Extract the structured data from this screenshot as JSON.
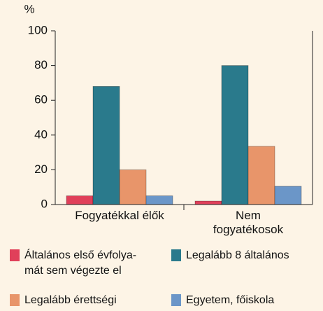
{
  "chart_data": {
    "type": "bar",
    "y_label": "%",
    "categories": [
      "Fogyatékkal élők",
      "Nem\nfogyatékosok"
    ],
    "series": [
      {
        "name": "Általános első évfolya-\nmát sem végezte el",
        "color": "#e0405a",
        "values": [
          5,
          2
        ]
      },
      {
        "name": "Legalább 8 általános",
        "color": "#2a7a8c",
        "values": [
          68,
          80
        ]
      },
      {
        "name": "Legalább érettségi",
        "color": "#e8956a",
        "values": [
          20,
          33.5
        ]
      },
      {
        "name": "Egyetem, főiskola",
        "color": "#6b96c8",
        "values": [
          5,
          10.5
        ]
      }
    ],
    "ylim": [
      0,
      100
    ],
    "yticks": [
      0,
      20,
      40,
      60,
      80,
      100
    ],
    "grid": false
  }
}
